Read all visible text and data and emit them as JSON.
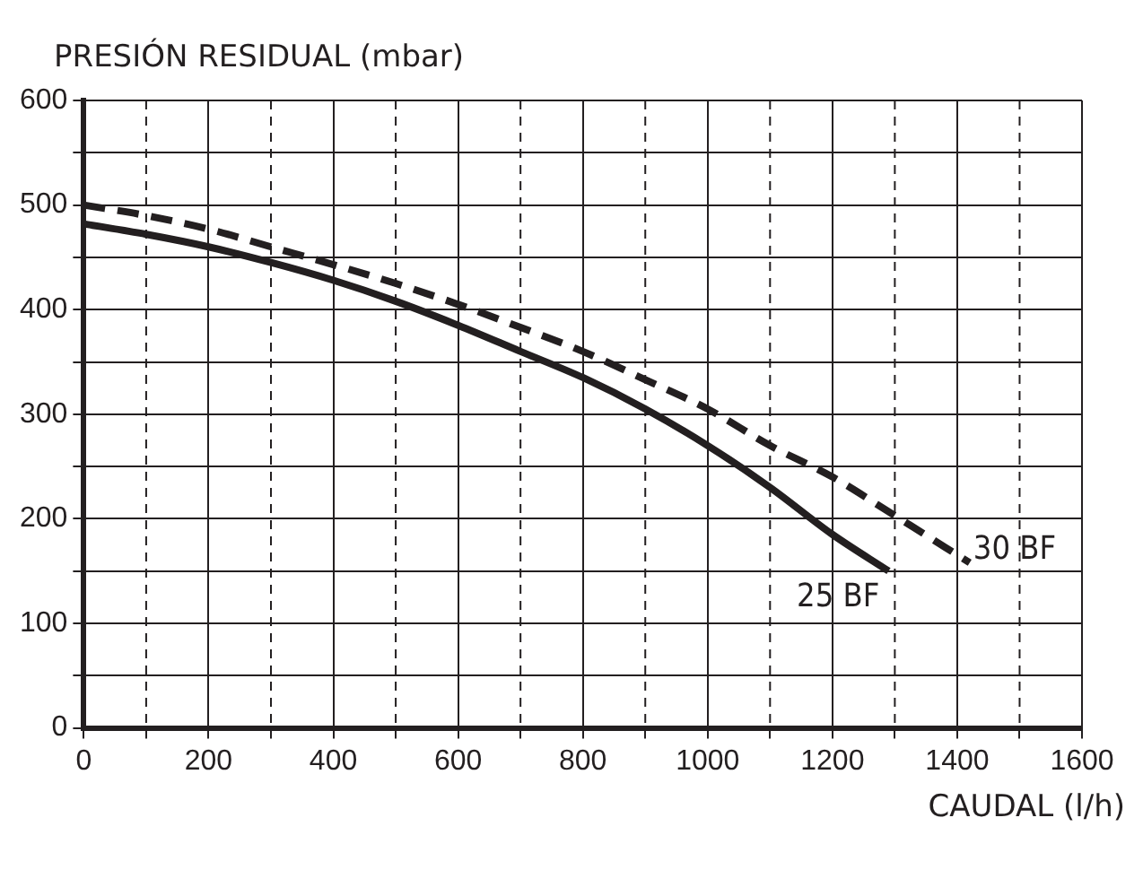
{
  "chart_data": {
    "type": "line",
    "xlabel": "CAUDAL (l/h)",
    "ylabel": "PRESIÓN RESIDUAL (mbar)",
    "xlim": [
      0,
      1600
    ],
    "ylim": [
      0,
      600
    ],
    "xticks": [
      0,
      {
        "value": 100,
        "label": null
      },
      200,
      {
        "value": 300,
        "label": null
      },
      400,
      {
        "value": 500,
        "label": null
      },
      600,
      {
        "value": 700,
        "label": null
      },
      800,
      {
        "value": 900,
        "label": null
      },
      1000,
      {
        "value": 1100,
        "label": null
      },
      1200,
      {
        "value": 1300,
        "label": null
      },
      1400,
      {
        "value": 1500,
        "label": null
      },
      1600
    ],
    "yticks": [
      0,
      {
        "value": 50,
        "label": null
      },
      100,
      {
        "value": 150,
        "label": null
      },
      200,
      {
        "value": 250,
        "label": null
      },
      300,
      {
        "value": 350,
        "label": null
      },
      400,
      {
        "value": 450,
        "label": null
      },
      500,
      {
        "value": 550,
        "label": null
      },
      600
    ],
    "grid": true,
    "legend": false,
    "marker": "none",
    "series": [
      {
        "name": "25 BF",
        "color": "#231f20",
        "line_style": "solid",
        "x": [
          0,
          100,
          200,
          300,
          400,
          500,
          600,
          700,
          800,
          900,
          1000,
          1100,
          1200,
          1290
        ],
        "values": [
          482,
          472,
          460,
          445,
          428,
          408,
          385,
          360,
          335,
          305,
          270,
          230,
          185,
          150
        ]
      },
      {
        "name": "30 BF",
        "color": "#231f20",
        "line_style": "dashed",
        "x": [
          0,
          100,
          200,
          300,
          400,
          500,
          600,
          700,
          800,
          900,
          1000,
          1100,
          1200,
          1300,
          1420
        ],
        "values": [
          500,
          490,
          477,
          460,
          443,
          425,
          405,
          383,
          360,
          333,
          305,
          270,
          240,
          203,
          158
        ]
      }
    ]
  }
}
